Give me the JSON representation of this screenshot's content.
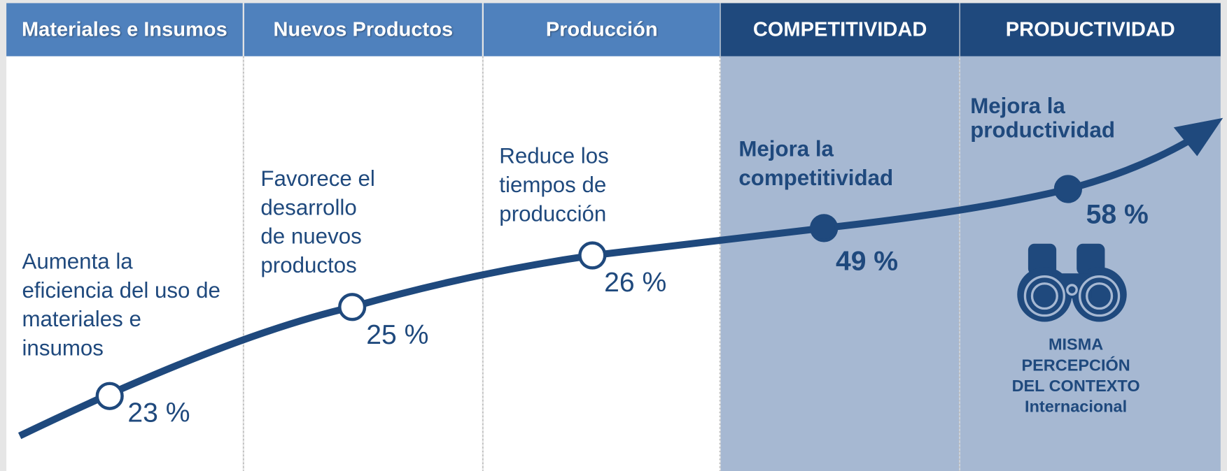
{
  "columns": [
    {
      "header": "Materiales e Insumos",
      "text": [
        "Aumenta la",
        "eficiencia del uso de",
        "materiales e",
        "insumos"
      ],
      "value": "23 %"
    },
    {
      "header": "Nuevos Productos",
      "text": [
        "Favorece el",
        "desarrollo",
        "de nuevos",
        "productos"
      ],
      "value": "25 %"
    },
    {
      "header": "Producción",
      "text": [
        "Reduce los",
        "tiempos de",
        "producción"
      ],
      "value": "26 %"
    },
    {
      "header": "COMPETITIVIDAD",
      "text": [
        "Mejora la",
        "competitividad"
      ],
      "value": "49 %"
    },
    {
      "header": "PRODUCTIVIDAD",
      "text": [
        "Mejora la",
        "productividad"
      ],
      "value": "58 %"
    }
  ],
  "note": [
    "MISMA",
    "PERCEPCIÓN",
    "DEL CONTEXTO",
    "Internacional"
  ]
}
